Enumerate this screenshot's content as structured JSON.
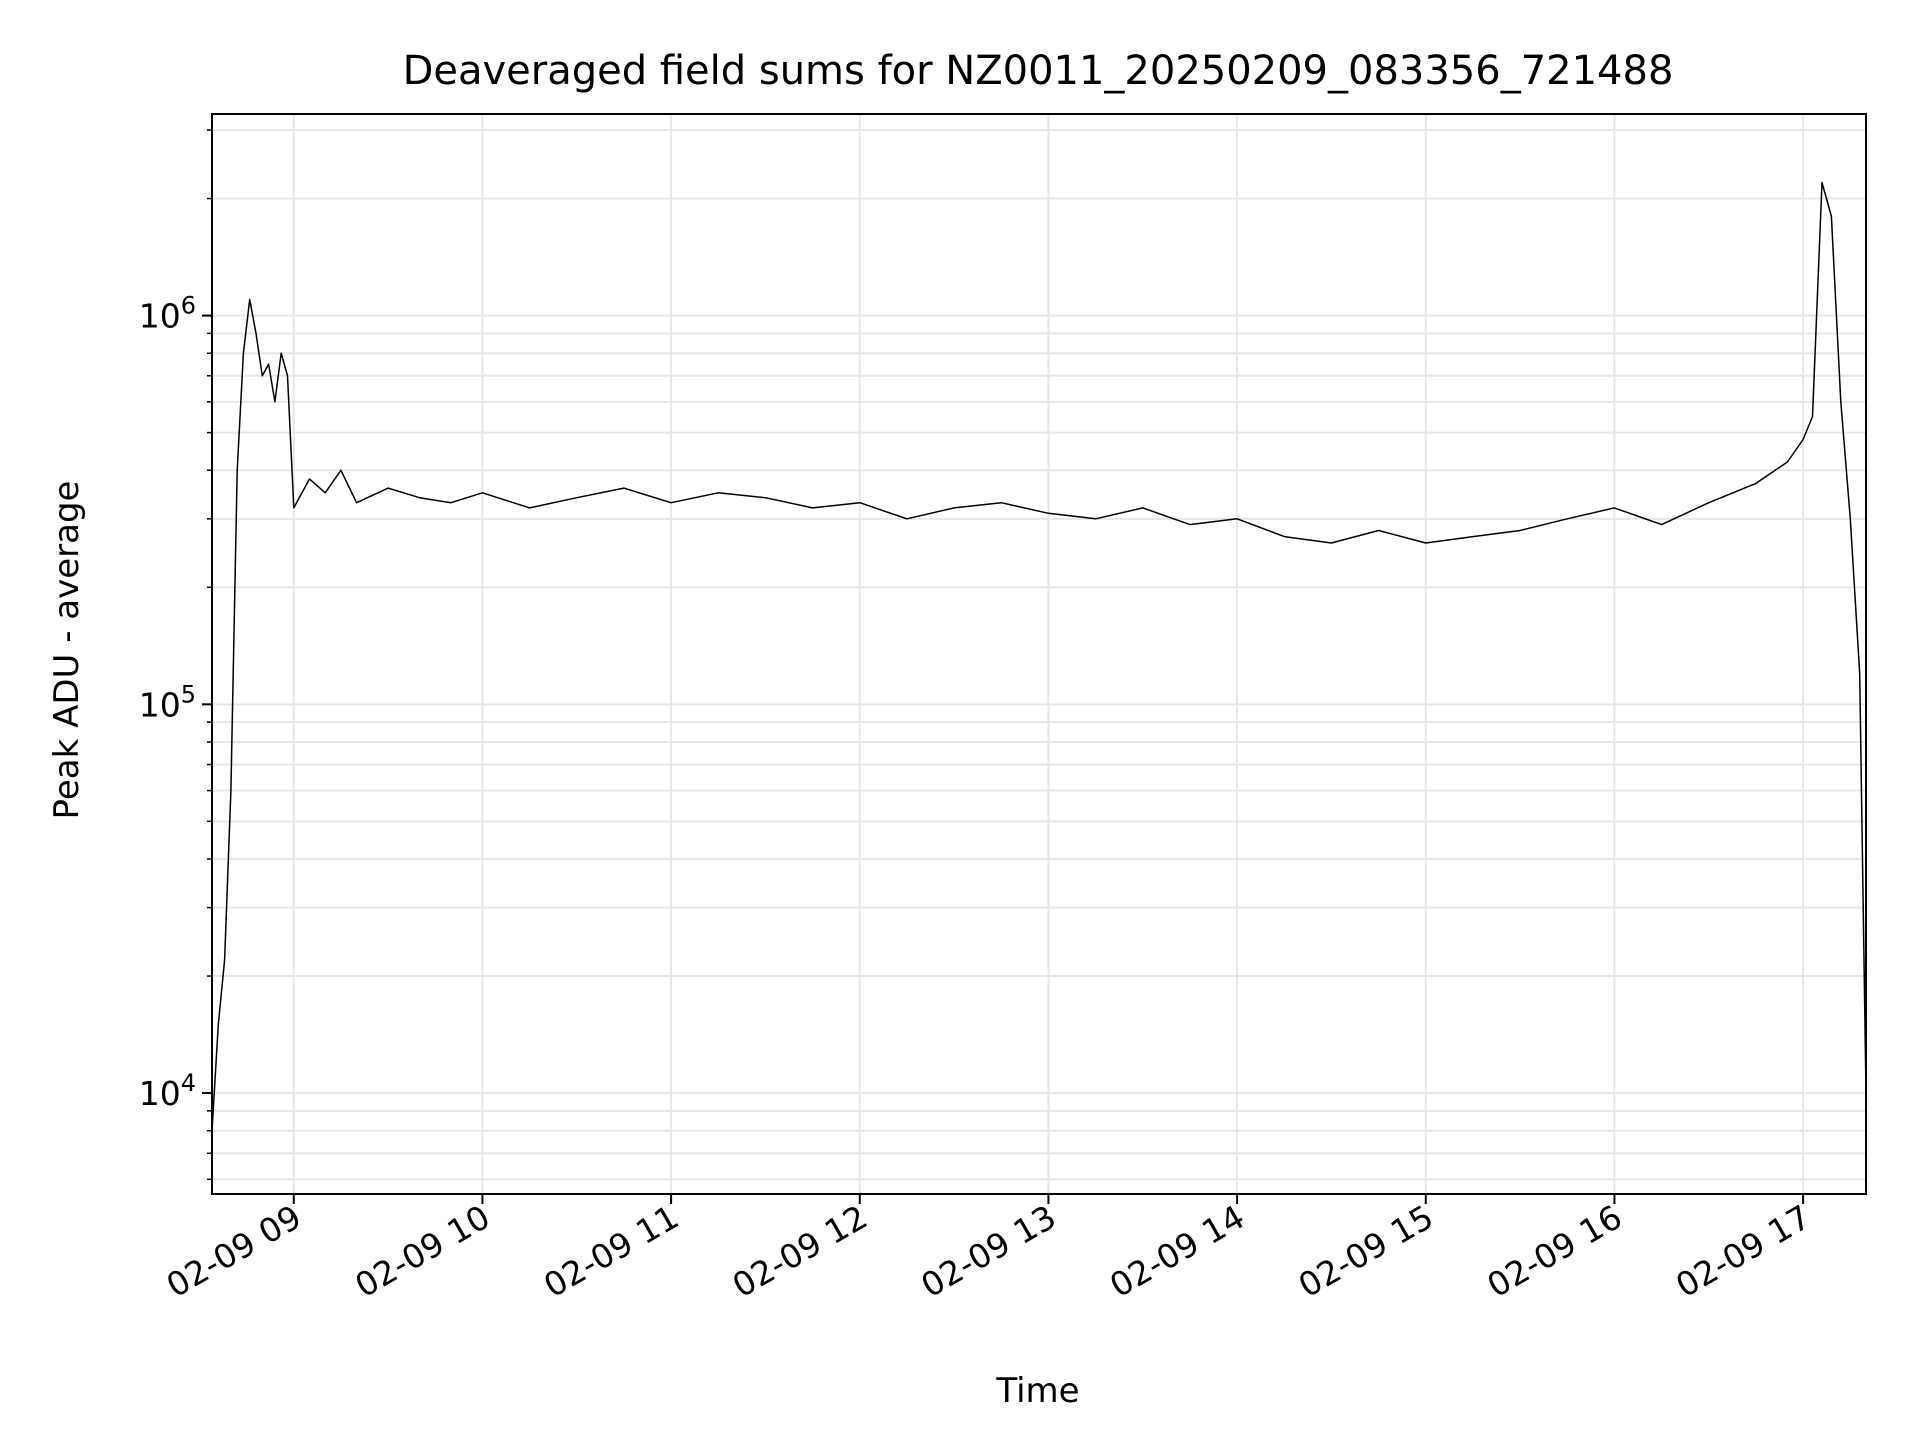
{
  "chart_data": {
    "type": "line",
    "title": "Deaveraged field sums for NZ0011_20250209_083356_721488",
    "xlabel": "Time",
    "ylabel": "Peak ADU - average",
    "yscale": "log",
    "ylim": [
      5500,
      3300000
    ],
    "xlim": [
      "2025-02-09 08:34",
      "2025-02-09 17:20"
    ],
    "grid": true,
    "line_color": "#000000",
    "x_ticks": [
      "02-09 09",
      "02-09 10",
      "02-09 11",
      "02-09 12",
      "02-09 13",
      "02-09 14",
      "02-09 15",
      "02-09 16",
      "02-09 17"
    ],
    "y_ticks": [
      {
        "value": 10000,
        "base": "10",
        "exp": "4"
      },
      {
        "value": 100000,
        "base": "10",
        "exp": "5"
      },
      {
        "value": 1000000,
        "base": "10",
        "exp": "6"
      }
    ],
    "series": [
      {
        "x": [
          "2025-02-09 08:34",
          "2025-02-09 08:36",
          "2025-02-09 08:38",
          "2025-02-09 08:40",
          "2025-02-09 08:42",
          "2025-02-09 08:44",
          "2025-02-09 08:46",
          "2025-02-09 08:48",
          "2025-02-09 08:50",
          "2025-02-09 08:52",
          "2025-02-09 08:54",
          "2025-02-09 08:56",
          "2025-02-09 08:58",
          "2025-02-09 09:00",
          "2025-02-09 09:05",
          "2025-02-09 09:10",
          "2025-02-09 09:15",
          "2025-02-09 09:20",
          "2025-02-09 09:30",
          "2025-02-09 09:40",
          "2025-02-09 09:50",
          "2025-02-09 10:00",
          "2025-02-09 10:15",
          "2025-02-09 10:30",
          "2025-02-09 10:45",
          "2025-02-09 11:00",
          "2025-02-09 11:15",
          "2025-02-09 11:30",
          "2025-02-09 11:45",
          "2025-02-09 12:00",
          "2025-02-09 12:15",
          "2025-02-09 12:30",
          "2025-02-09 12:45",
          "2025-02-09 13:00",
          "2025-02-09 13:15",
          "2025-02-09 13:30",
          "2025-02-09 13:45",
          "2025-02-09 14:00",
          "2025-02-09 14:15",
          "2025-02-09 14:30",
          "2025-02-09 14:45",
          "2025-02-09 15:00",
          "2025-02-09 15:15",
          "2025-02-09 15:30",
          "2025-02-09 15:45",
          "2025-02-09 16:00",
          "2025-02-09 16:15",
          "2025-02-09 16:30",
          "2025-02-09 16:45",
          "2025-02-09 16:55",
          "2025-02-09 17:00",
          "2025-02-09 17:03",
          "2025-02-09 17:06",
          "2025-02-09 17:09",
          "2025-02-09 17:12",
          "2025-02-09 17:15",
          "2025-02-09 17:18",
          "2025-02-09 17:20"
        ],
        "y": [
          8000,
          15000,
          22000,
          60000,
          400000,
          800000,
          1100000,
          900000,
          700000,
          750000,
          600000,
          800000,
          700000,
          320000,
          380000,
          350000,
          400000,
          330000,
          360000,
          340000,
          330000,
          350000,
          320000,
          340000,
          360000,
          330000,
          350000,
          340000,
          320000,
          330000,
          300000,
          320000,
          330000,
          310000,
          300000,
          320000,
          290000,
          300000,
          270000,
          260000,
          280000,
          260000,
          270000,
          280000,
          300000,
          320000,
          290000,
          330000,
          370000,
          420000,
          480000,
          550000,
          2200000,
          1800000,
          600000,
          300000,
          120000,
          10000
        ]
      }
    ]
  }
}
